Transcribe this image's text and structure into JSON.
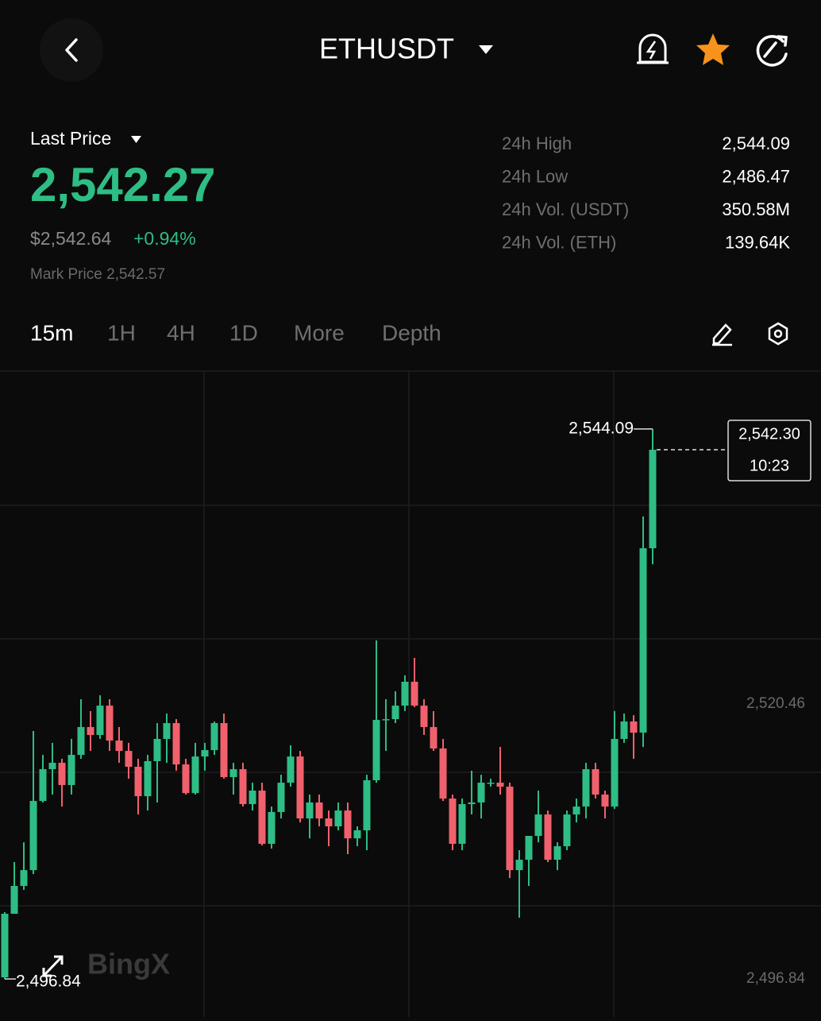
{
  "page": {
    "header": {
      "title": "ETHUSDT"
    },
    "price": {
      "label": "Last Price",
      "last": "2,542.27",
      "usd": "$2,542.64",
      "change": "+0.94%",
      "mark": "Mark Price 2,542.57"
    },
    "stats": [
      {
        "label": "24h High",
        "value": "2,544.09"
      },
      {
        "label": "24h Low",
        "value": "2,486.47"
      },
      {
        "label": "24h Vol. (USDT)",
        "value": "350.58M"
      },
      {
        "label": "24h Vol. (ETH)",
        "value": "139.64K"
      }
    ],
    "tabs": [
      "15m",
      "1H",
      "4H",
      "1D",
      "More",
      "Depth"
    ],
    "watermark": "BingX"
  },
  "chart_data": {
    "type": "candlestick",
    "up_color": "#2ebd85",
    "down_color": "#f0616d",
    "ylim": [
      2493.57,
      2549.06
    ],
    "yticks": [
      {
        "value": 2520.46,
        "label": "2,520.46"
      },
      {
        "value": 2496.84,
        "label": "2,496.84"
      }
    ],
    "max_annotation": {
      "value": 2544.09,
      "label": "2,544.09"
    },
    "min_annotation": {
      "value": 2496.84,
      "label": "2,496.84"
    },
    "last_price": {
      "value": 2542.3,
      "label": "2,542.30",
      "time": "10:23"
    },
    "open": [
      2496.98,
      2502.44,
      2504.83,
      2506.19,
      2512.13,
      2514.86,
      2515.41,
      2513.5,
      2516.09,
      2518.48,
      2517.8,
      2520.32,
      2517.32,
      2516.43,
      2515.07,
      2512.54,
      2515.55,
      2517.46,
      2518.82,
      2515.27,
      2512.81,
      2515.95,
      2516.5,
      2518.82,
      2514.18,
      2514.86,
      2511.86,
      2513.02,
      2508.45,
      2511.18,
      2513.7,
      2515.95,
      2510.63,
      2512.0,
      2510.63,
      2509.95,
      2511.31,
      2508.92,
      2509.61,
      2513.91,
      2519.09,
      2519.16,
      2520.32,
      2522.37,
      2520.32,
      2518.48,
      2516.64,
      2512.34,
      2508.45,
      2511.86,
      2512.0,
      2513.7,
      2513.7,
      2513.36,
      2506.19,
      2507.08,
      2509.13,
      2510.97,
      2507.08,
      2508.24,
      2510.97,
      2511.65,
      2514.86,
      2512.68,
      2511.65,
      2517.46,
      2518.96,
      2518.0,
      2533.84
    ],
    "high": [
      2502.58,
      2506.88,
      2508.58,
      2518.14,
      2516.09,
      2517.12,
      2515.75,
      2517.46,
      2520.87,
      2519.85,
      2521.21,
      2520.87,
      2518.48,
      2517.12,
      2515.75,
      2516.09,
      2518.82,
      2519.64,
      2519.16,
      2515.75,
      2517.12,
      2517.12,
      2518.96,
      2519.64,
      2515.41,
      2515.41,
      2513.7,
      2513.7,
      2511.65,
      2514.38,
      2516.91,
      2516.43,
      2512.68,
      2512.68,
      2511.31,
      2512.0,
      2512.0,
      2509.95,
      2514.38,
      2525.92,
      2520.87,
      2521.55,
      2522.92,
      2524.42,
      2520.87,
      2519.85,
      2517.46,
      2512.68,
      2512.34,
      2514.73,
      2514.38,
      2514.04,
      2516.77,
      2513.7,
      2507.9,
      2509.13,
      2513.02,
      2511.31,
      2508.58,
      2511.31,
      2512.34,
      2515.41,
      2515.41,
      2513.02,
      2519.85,
      2519.64,
      2519.5,
      2536.57,
      2544.09
    ],
    "low": [
      2496.84,
      2502.44,
      2504.49,
      2505.85,
      2512.0,
      2512.68,
      2511.65,
      2512.68,
      2515.75,
      2516.43,
      2517.46,
      2516.43,
      2515.41,
      2514.04,
      2510.97,
      2511.31,
      2512.0,
      2515.41,
      2514.73,
      2512.68,
      2512.68,
      2514.73,
      2516.09,
      2514.04,
      2512.68,
      2511.65,
      2511.31,
      2508.31,
      2508.04,
      2510.63,
      2513.36,
      2510.29,
      2508.92,
      2509.95,
      2508.24,
      2509.61,
      2507.56,
      2508.24,
      2507.9,
      2513.7,
      2516.43,
      2518.82,
      2519.85,
      2520.19,
      2517.8,
      2516.43,
      2512.13,
      2507.9,
      2507.9,
      2510.97,
      2510.63,
      2513.36,
      2512.68,
      2505.51,
      2502.1,
      2504.83,
      2508.58,
      2506.88,
      2506.19,
      2507.9,
      2510.29,
      2510.63,
      2512.34,
      2510.63,
      2511.45,
      2517.12,
      2515.75,
      2516.77,
      2532.47
    ],
    "close": [
      2502.44,
      2504.83,
      2506.19,
      2512.13,
      2514.86,
      2515.41,
      2513.5,
      2516.09,
      2518.48,
      2517.8,
      2520.32,
      2517.32,
      2516.43,
      2515.07,
      2512.54,
      2515.55,
      2517.46,
      2518.82,
      2515.27,
      2512.81,
      2515.95,
      2516.5,
      2518.82,
      2514.18,
      2514.86,
      2511.86,
      2513.02,
      2508.45,
      2511.18,
      2513.7,
      2515.95,
      2510.63,
      2512.0,
      2510.63,
      2509.95,
      2511.31,
      2508.92,
      2509.61,
      2513.91,
      2519.09,
      2519.16,
      2520.32,
      2522.37,
      2520.32,
      2518.48,
      2516.64,
      2512.34,
      2508.45,
      2511.86,
      2512.0,
      2513.7,
      2513.7,
      2513.36,
      2506.19,
      2507.08,
      2509.13,
      2510.97,
      2507.08,
      2508.24,
      2510.97,
      2511.65,
      2514.86,
      2512.68,
      2511.65,
      2517.46,
      2518.96,
      2518.0,
      2533.84,
      2542.3
    ]
  }
}
